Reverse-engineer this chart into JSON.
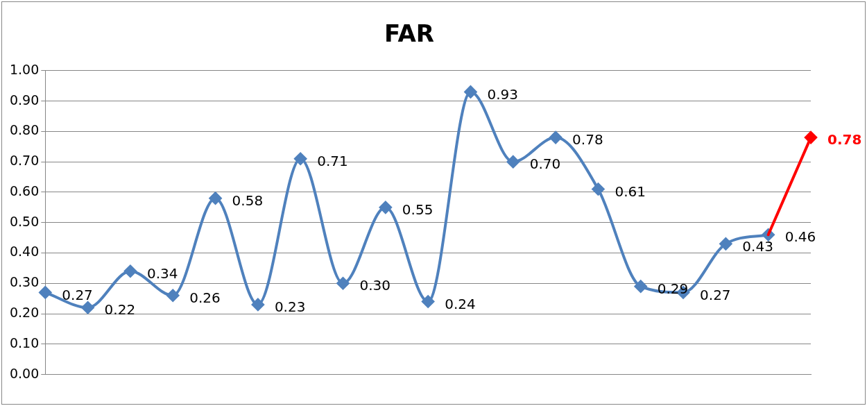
{
  "chart_data": {
    "type": "line",
    "title": "FAR",
    "categories": [
      null,
      null,
      null,
      null,
      null,
      null,
      null,
      null,
      null,
      null,
      null,
      null,
      null,
      null,
      null,
      null,
      null,
      null,
      null
    ],
    "series": [
      {
        "color": "#4f81bd",
        "values": [
          0.27,
          0.22,
          0.34,
          0.26,
          0.58,
          0.23,
          0.71,
          0.3,
          0.55,
          0.24,
          0.93,
          0.7,
          0.78,
          0.61,
          0.29,
          0.27,
          0.43,
          0.46,
          null
        ],
        "value_labels": [
          "0.27",
          "0.22",
          "0.34",
          "0.26",
          "0.58",
          "0.23",
          "0.71",
          "0.30",
          "0.55",
          "0.24",
          "0.93",
          "0.70",
          "0.78",
          "0.61",
          "0.29",
          "0.27",
          "0.43",
          "0.46",
          null
        ]
      },
      {
        "color": "#ff0000",
        "values": [
          null,
          null,
          null,
          null,
          null,
          null,
          null,
          null,
          null,
          null,
          null,
          null,
          null,
          null,
          null,
          null,
          null,
          0.46,
          0.78
        ],
        "value_labels": [
          null,
          null,
          null,
          null,
          null,
          null,
          null,
          null,
          null,
          null,
          null,
          null,
          null,
          null,
          null,
          null,
          null,
          null,
          "0.78"
        ]
      }
    ],
    "ylim": [
      0,
      1
    ],
    "yticks": [
      {
        "value": 0,
        "label": "0.00"
      },
      {
        "value": 0.1,
        "label": "0.10"
      },
      {
        "value": 0.2,
        "label": "0.20"
      },
      {
        "value": 0.3,
        "label": "0.30"
      },
      {
        "value": 0.4,
        "label": "0.40"
      },
      {
        "value": 0.5,
        "label": "0.50"
      },
      {
        "value": 0.6,
        "label": "0.60"
      },
      {
        "value": 0.7,
        "label": "0.70"
      },
      {
        "value": 0.8,
        "label": "0.80"
      },
      {
        "value": 0.9,
        "label": "0.90"
      },
      {
        "value": 1,
        "label": "1.00"
      }
    ],
    "grid": "y",
    "legend": false,
    "marker": "diamond",
    "line_style": "solid"
  }
}
